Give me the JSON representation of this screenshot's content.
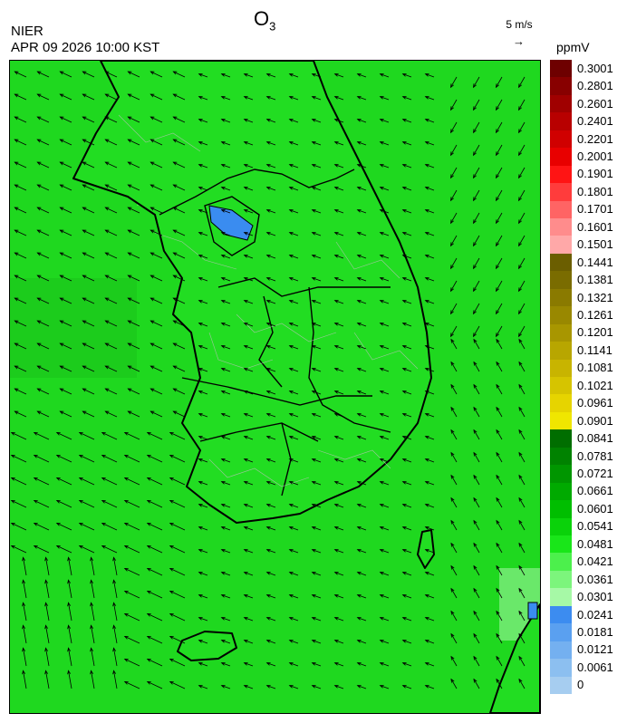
{
  "header": {
    "title_main": "O",
    "title_sub": "3",
    "agency": "NIER",
    "timestamp": "APR 09 2026 10:00 KST",
    "reference_vector_label": "5 m/s",
    "reference_vector_arrow": "→",
    "unit": "ppmV"
  },
  "legend": {
    "labels": [
      "0.3001",
      "0.2801",
      "0.2601",
      "0.2401",
      "0.2201",
      "0.2001",
      "0.1901",
      "0.1801",
      "0.1701",
      "0.1601",
      "0.1501",
      "0.1441",
      "0.1381",
      "0.1321",
      "0.1261",
      "0.1201",
      "0.1141",
      "0.1081",
      "0.1021",
      "0.0961",
      "0.0901",
      "0.0841",
      "0.0781",
      "0.0721",
      "0.0661",
      "0.0601",
      "0.0541",
      "0.0481",
      "0.0421",
      "0.0361",
      "0.0301",
      "0.0241",
      "0.0181",
      "0.0121",
      "0.0061",
      "0"
    ],
    "colors": [
      "#6e0000",
      "#880000",
      "#a00000",
      "#b80000",
      "#d00000",
      "#e80000",
      "#ff1414",
      "#ff3c3c",
      "#ff6464",
      "#ff8c8c",
      "#ffa8a8",
      "#6b5e00",
      "#7a6c00",
      "#8a7a00",
      "#998800",
      "#a89600",
      "#b8a600",
      "#c8b400",
      "#d6c400",
      "#e6d400",
      "#f0e600",
      "#006e00",
      "#008200",
      "#009600",
      "#00aa00",
      "#00be00",
      "#0ad20a",
      "#19e619",
      "#4cf04c",
      "#7cf57c",
      "#a6f9a6",
      "#3c8cf0",
      "#5aa0f0",
      "#74b0f0",
      "#8cbff0",
      "#a6cdf0"
    ]
  },
  "map_data": {
    "region": "Korean Peninsula and surrounding seas",
    "variable": "O3 concentration with surface wind vectors",
    "dominant_range_ppmV": [
      0.0361,
      0.0541
    ],
    "highlight": "low-ozone patch (0.0241–0.0301) near Seoul metropolitan area"
  }
}
